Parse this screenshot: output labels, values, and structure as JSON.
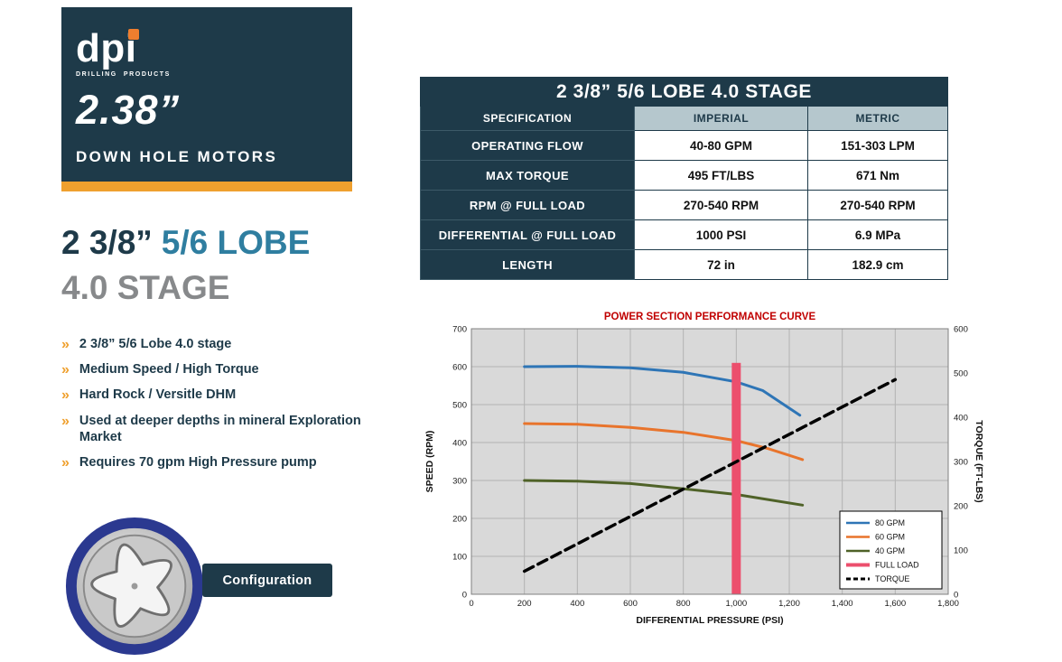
{
  "brand": {
    "logo_text": "dpi",
    "logo_sub_left": "DRILLING",
    "logo_sub_right": "PRODUCTS",
    "size_label": "2.38”",
    "product_line": "DOWN HOLE MOTORS"
  },
  "title": {
    "size": "2 3/8”",
    "lobe": "5/6 LOBE",
    "stage": "4.0 STAGE"
  },
  "bullets": [
    "2 3/8” 5/6 Lobe  4.0 stage",
    "Medium Speed / High Torque",
    "Hard Rock / Versitle DHM",
    "Used at deeper depths in mineral Exploration Market",
    "Requires 70 gpm High Pressure pump"
  ],
  "configuration_button": "Configuration",
  "spec_table": {
    "title": "2 3/8” 5/6 LOBE  4.0 STAGE",
    "columns": [
      "SPECIFICATION",
      "IMPERIAL",
      "METRIC"
    ],
    "rows": [
      {
        "spec": "OPERATING FLOW",
        "imperial": "40-80 GPM",
        "metric": "151-303 LPM"
      },
      {
        "spec": "MAX TORQUE",
        "imperial": "495 FT/LBS",
        "metric": "671 Nm"
      },
      {
        "spec": "RPM @ FULL LOAD",
        "imperial": "270-540 RPM",
        "metric": "270-540 RPM"
      },
      {
        "spec": "DIFFERENTIAL @ FULL LOAD",
        "imperial": "1000 PSI",
        "metric": "6.9 MPa"
      },
      {
        "spec": "LENGTH",
        "imperial": "72 in",
        "metric": "182.9 cm"
      }
    ]
  },
  "chart_data": {
    "type": "line",
    "title": "POWER SECTION PERFORMANCE CURVE",
    "title_color": "#c00000",
    "xlabel": "DIFFERENTIAL PRESSURE (PSI)",
    "ylabel_left": "SPEED (RPM)",
    "ylabel_right": "TORQUE (FT-LBS)",
    "x_range": [
      0,
      1800
    ],
    "x_tick_step": 200,
    "x_tick_labels": [
      "0",
      "200",
      "400",
      "600",
      "800",
      "1,000",
      "1,200",
      "1,400",
      "1,600",
      "1,800"
    ],
    "y_left_range": [
      0,
      700
    ],
    "y_left_tick_step": 100,
    "y_right_range": [
      0,
      600
    ],
    "y_right_tick_step": 100,
    "grid": true,
    "legend_position": "bottom-right",
    "plot_bg": "#d9d9d9",
    "series": [
      {
        "name": "80 GPM",
        "axis": "left",
        "style": "solid",
        "color": "#2e75b6",
        "points": [
          [
            200,
            600
          ],
          [
            400,
            601
          ],
          [
            600,
            597
          ],
          [
            800,
            585
          ],
          [
            1000,
            560
          ],
          [
            1100,
            537
          ],
          [
            1240,
            472
          ]
        ]
      },
      {
        "name": "60 GPM",
        "axis": "left",
        "style": "solid",
        "color": "#e8742c",
        "points": [
          [
            200,
            450
          ],
          [
            400,
            448
          ],
          [
            600,
            440
          ],
          [
            800,
            427
          ],
          [
            1000,
            405
          ],
          [
            1120,
            384
          ],
          [
            1250,
            355
          ]
        ]
      },
      {
        "name": "40 GPM",
        "axis": "left",
        "style": "solid",
        "color": "#4f6228",
        "points": [
          [
            200,
            300
          ],
          [
            400,
            298
          ],
          [
            600,
            292
          ],
          [
            800,
            278
          ],
          [
            1000,
            263
          ],
          [
            1250,
            235
          ]
        ]
      },
      {
        "name": "FULL LOAD",
        "axis": "left",
        "style": "bar",
        "color": "#ec4f6d",
        "points": [
          [
            1000,
            610
          ]
        ]
      },
      {
        "name": "TORQUE",
        "axis": "right",
        "style": "dashed",
        "color": "#000000",
        "points": [
          [
            200,
            52
          ],
          [
            1600,
            485
          ]
        ]
      }
    ]
  }
}
